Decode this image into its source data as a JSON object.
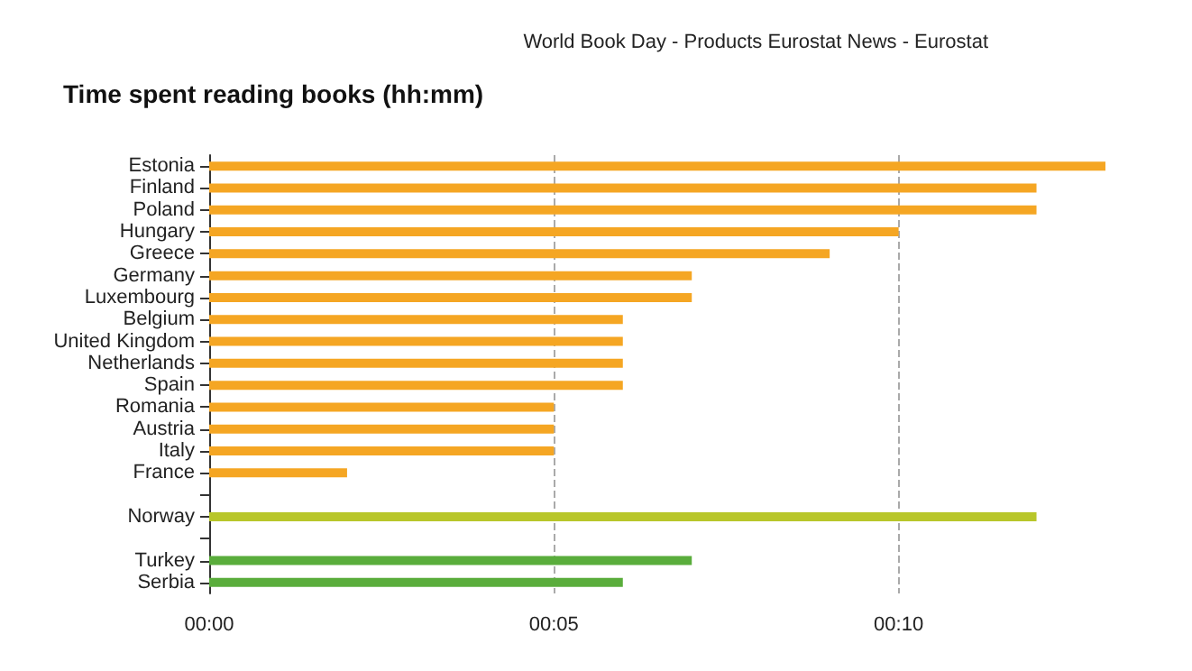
{
  "chart_data": {
    "type": "bar",
    "orientation": "horizontal",
    "title": "Time spent reading books (hh:mm)",
    "annotations": [
      "World Book Day - Products Eurostat News - Eurostat"
    ],
    "categories": [
      "Estonia",
      "Finland",
      "Poland",
      "Hungary",
      "Greece",
      "Germany",
      "Luxembourg",
      "Belgium",
      "United Kingdom",
      "Netherlands",
      "Spain",
      "Romania",
      "Austria",
      "Italy",
      "France",
      null,
      "Norway",
      null,
      "Turkey",
      "Serbia"
    ],
    "values": [
      13,
      12,
      12,
      10,
      9,
      7,
      7,
      6,
      6,
      6,
      6,
      5,
      5,
      5,
      2,
      null,
      12,
      null,
      7,
      6
    ],
    "colors": [
      "#f5a623",
      "#f5a623",
      "#f5a623",
      "#f5a623",
      "#f5a623",
      "#f5a623",
      "#f5a623",
      "#f5a623",
      "#f5a623",
      "#f5a623",
      "#f5a623",
      "#f5a623",
      "#f5a623",
      "#f5a623",
      "#f5a623",
      "#f5a623",
      "#b8c62a",
      "#5aad3c",
      "#5aad3c",
      "#5aad3c"
    ],
    "xlim": [
      0,
      13
    ],
    "xticks": [
      {
        "value": 0,
        "label": "00:00"
      },
      {
        "value": 5,
        "label": "00:05"
      },
      {
        "value": 10,
        "label": "00:10"
      }
    ],
    "grid": "x"
  }
}
